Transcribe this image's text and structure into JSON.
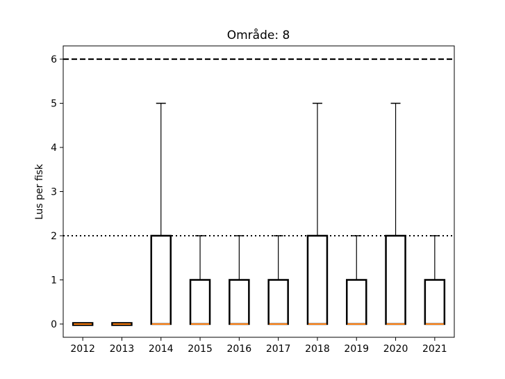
{
  "chart_data": {
    "type": "box",
    "title": "Område: 8",
    "xlabel": "",
    "ylabel": "Lus per fisk",
    "ylim": [
      -0.3,
      6.3
    ],
    "yticks": [
      0,
      1,
      2,
      3,
      4,
      5,
      6
    ],
    "categories": [
      "2012",
      "2013",
      "2014",
      "2015",
      "2016",
      "2017",
      "2018",
      "2019",
      "2020",
      "2021"
    ],
    "boxes": [
      {
        "min": 0,
        "q1": 0,
        "median": 0,
        "q3": 0,
        "max": 0
      },
      {
        "min": 0,
        "q1": 0,
        "median": 0,
        "q3": 0,
        "max": 0
      },
      {
        "min": 0,
        "q1": 0,
        "median": 0,
        "q3": 2,
        "max": 5
      },
      {
        "min": 0,
        "q1": 0,
        "median": 0,
        "q3": 1,
        "max": 2
      },
      {
        "min": 0,
        "q1": 0,
        "median": 0,
        "q3": 1,
        "max": 2
      },
      {
        "min": 0,
        "q1": 0,
        "median": 0,
        "q3": 1,
        "max": 2
      },
      {
        "min": 0,
        "q1": 0,
        "median": 0,
        "q3": 2,
        "max": 5
      },
      {
        "min": 0,
        "q1": 0,
        "median": 0,
        "q3": 1,
        "max": 2
      },
      {
        "min": 0,
        "q1": 0,
        "median": 0,
        "q3": 2,
        "max": 5
      },
      {
        "min": 0,
        "q1": 0,
        "median": 0,
        "q3": 1,
        "max": 2
      }
    ],
    "reference_lines": [
      {
        "y": 6,
        "style": "dashed"
      },
      {
        "y": 2,
        "style": "dotted"
      }
    ],
    "grid": false,
    "colors": {
      "box": "#000000",
      "median": "#ff7f0e",
      "axis": "#000000"
    }
  }
}
